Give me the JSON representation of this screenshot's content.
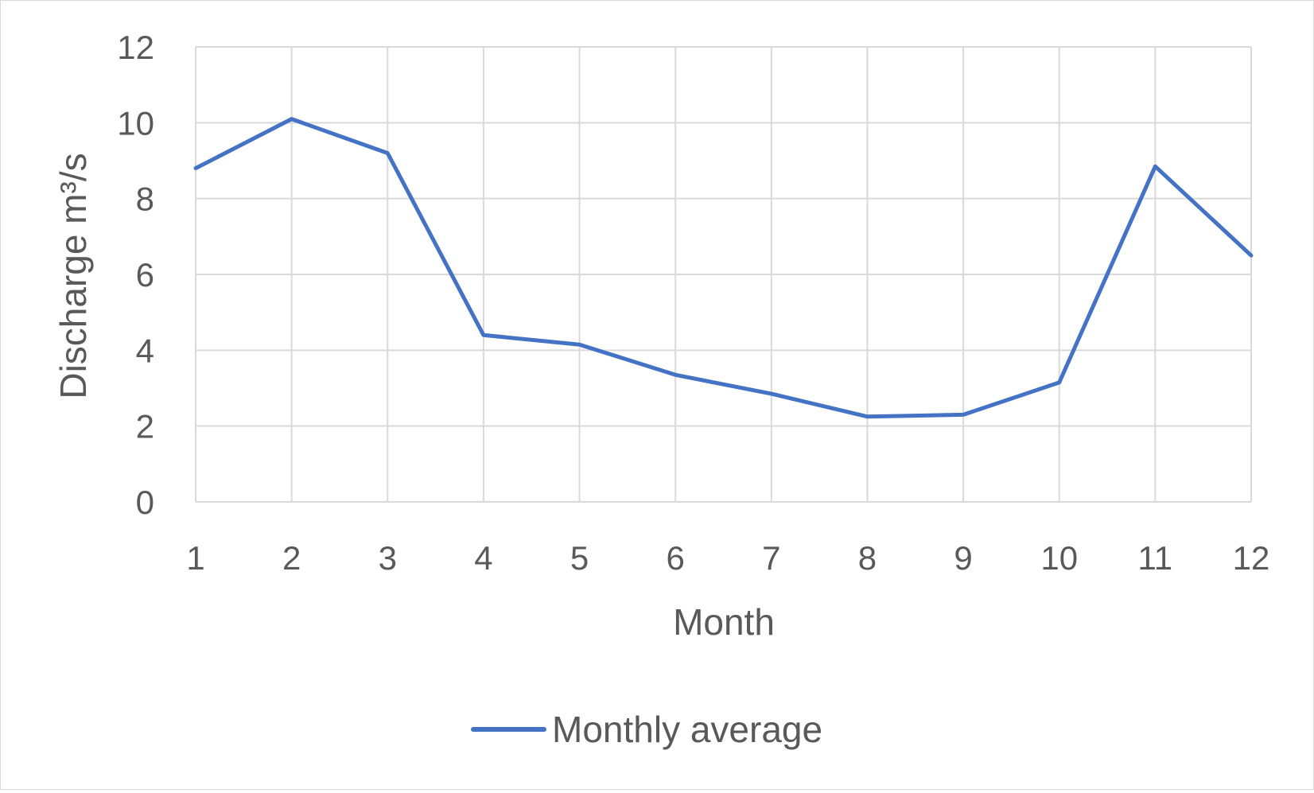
{
  "chart_data": {
    "type": "line",
    "title": "",
    "xlabel": "Month",
    "ylabel": "Discharge m³/s",
    "ylim": [
      0,
      12
    ],
    "yticks": [
      "0",
      "2",
      "4",
      "6",
      "8",
      "10",
      "12"
    ],
    "categories": [
      "1",
      "2",
      "3",
      "4",
      "5",
      "6",
      "7",
      "8",
      "9",
      "10",
      "11",
      "12"
    ],
    "series": [
      {
        "name": "Monthly average",
        "color": "#4472C4",
        "values": [
          8.8,
          10.1,
          9.2,
          4.4,
          4.15,
          3.35,
          2.85,
          2.25,
          2.3,
          3.15,
          8.85,
          6.5
        ]
      }
    ],
    "grid": true,
    "legend": "bottom"
  }
}
